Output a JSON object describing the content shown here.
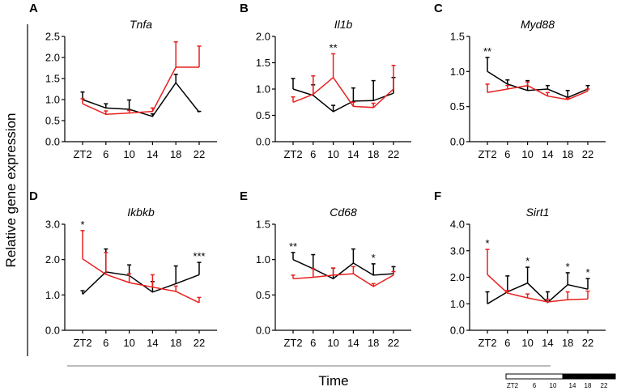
{
  "figure": {
    "ylabel": "Relative gene expression",
    "xlabel": "Time",
    "light_bar": {
      "labels": [
        "ZT2",
        "6",
        "10",
        "14",
        "18",
        "22"
      ]
    }
  },
  "colors": {
    "black_series": "#000000",
    "red_series": "#e8201e",
    "axis": "#000000"
  },
  "chart_data": [
    {
      "panel": "A",
      "title": "Tnfa",
      "type": "line",
      "x": [
        "ZT2",
        "6",
        "10",
        "14",
        "18",
        "22"
      ],
      "ylim": [
        0.0,
        2.5
      ],
      "yticks": [
        "0.0",
        "0.5",
        "1.0",
        "1.5",
        "2.0",
        "2.5"
      ],
      "series": [
        {
          "name": "black",
          "color": "#000000",
          "values": [
            1.0,
            0.8,
            0.77,
            0.6,
            1.4,
            0.7
          ],
          "err": [
            0.18,
            0.1,
            0.22,
            0.06,
            0.2,
            0.02
          ]
        },
        {
          "name": "red",
          "color": "#e8201e",
          "values": [
            0.9,
            0.65,
            0.68,
            0.72,
            1.77,
            1.77
          ],
          "err": [
            0.12,
            0.08,
            0.06,
            0.08,
            0.6,
            0.5
          ]
        }
      ],
      "annotations": []
    },
    {
      "panel": "B",
      "title": "Il1b",
      "type": "line",
      "x": [
        "ZT2",
        "6",
        "10",
        "14",
        "18",
        "22"
      ],
      "ylim": [
        0.0,
        2.0
      ],
      "yticks": [
        "0.0",
        "0.5",
        "1.0",
        "1.5",
        "2.0"
      ],
      "series": [
        {
          "name": "black",
          "color": "#000000",
          "values": [
            1.0,
            0.88,
            0.57,
            0.77,
            0.78,
            0.92
          ],
          "err": [
            0.2,
            0.2,
            0.12,
            0.25,
            0.38,
            0.3
          ]
        },
        {
          "name": "red",
          "color": "#e8201e",
          "values": [
            0.75,
            0.9,
            1.22,
            0.67,
            0.65,
            1.0
          ],
          "err": [
            0.1,
            0.35,
            0.45,
            0.08,
            0.08,
            0.45
          ]
        }
      ],
      "annotations": [
        {
          "x": "10",
          "text": "**"
        }
      ]
    },
    {
      "panel": "C",
      "title": "Myd88",
      "type": "line",
      "x": [
        "ZT2",
        "6",
        "10",
        "14",
        "18",
        "22"
      ],
      "ylim": [
        0.0,
        1.5
      ],
      "yticks": [
        "0.0",
        "0.5",
        "1.0",
        "1.5"
      ],
      "series": [
        {
          "name": "black",
          "color": "#000000",
          "values": [
            1.0,
            0.82,
            0.73,
            0.75,
            0.63,
            0.75
          ],
          "err": [
            0.2,
            0.06,
            0.14,
            0.05,
            0.1,
            0.05
          ]
        },
        {
          "name": "red",
          "color": "#e8201e",
          "values": [
            0.7,
            0.75,
            0.8,
            0.65,
            0.6,
            0.72
          ],
          "err": [
            0.12,
            0.05,
            0.05,
            0.05,
            0.02,
            0.03
          ]
        }
      ],
      "annotations": [
        {
          "x": "ZT2",
          "text": "**"
        }
      ]
    },
    {
      "panel": "D",
      "title": "Ikbkb",
      "type": "line",
      "x": [
        "ZT2",
        "6",
        "10",
        "14",
        "18",
        "22"
      ],
      "ylim": [
        0.0,
        3.0
      ],
      "yticks": [
        "0.0",
        "1.0",
        "2.0",
        "3.0"
      ],
      "series": [
        {
          "name": "black",
          "color": "#000000",
          "values": [
            1.02,
            1.65,
            1.55,
            1.08,
            1.32,
            1.57
          ],
          "err": [
            0.1,
            0.65,
            0.3,
            0.3,
            0.5,
            0.35
          ]
        },
        {
          "name": "red",
          "color": "#e8201e",
          "values": [
            2.02,
            1.58,
            1.35,
            1.22,
            1.1,
            0.78
          ],
          "err": [
            0.8,
            0.62,
            0.25,
            0.35,
            0.15,
            0.15
          ]
        }
      ],
      "annotations": [
        {
          "x": "ZT2",
          "text": "*"
        },
        {
          "x": "22",
          "text": "***"
        }
      ]
    },
    {
      "panel": "E",
      "title": "Cd68",
      "type": "line",
      "x": [
        "ZT2",
        "6",
        "10",
        "14",
        "18",
        "22"
      ],
      "ylim": [
        0.0,
        1.5
      ],
      "yticks": [
        "0.0",
        "0.5",
        "1.0",
        "1.5"
      ],
      "series": [
        {
          "name": "black",
          "color": "#000000",
          "values": [
            1.0,
            0.87,
            0.73,
            0.95,
            0.78,
            0.8
          ],
          "err": [
            0.1,
            0.2,
            0.15,
            0.2,
            0.16,
            0.1
          ]
        },
        {
          "name": "red",
          "color": "#e8201e",
          "values": [
            0.73,
            0.75,
            0.78,
            0.8,
            0.62,
            0.78
          ],
          "err": [
            0.05,
            0.12,
            0.1,
            0.1,
            0.04,
            0.05
          ]
        }
      ],
      "annotations": [
        {
          "x": "ZT2",
          "text": "**"
        },
        {
          "x": "18",
          "text": "*"
        }
      ]
    },
    {
      "panel": "F",
      "title": "Sirt1",
      "type": "line",
      "x": [
        "ZT2",
        "6",
        "10",
        "14",
        "18",
        "22"
      ],
      "ylim": [
        0.0,
        4.0
      ],
      "yticks": [
        "0.0",
        "1.0",
        "2.0",
        "3.0",
        "4.0"
      ],
      "series": [
        {
          "name": "black",
          "color": "#000000",
          "values": [
            1.0,
            1.45,
            1.78,
            1.05,
            1.72,
            1.55
          ],
          "err": [
            0.45,
            0.6,
            0.6,
            0.4,
            0.45,
            0.4
          ]
        },
        {
          "name": "red",
          "color": "#e8201e",
          "values": [
            2.1,
            1.4,
            1.22,
            1.07,
            1.15,
            1.18
          ],
          "err": [
            0.95,
            0.1,
            0.15,
            0.1,
            0.3,
            0.3
          ]
        }
      ],
      "annotations": [
        {
          "x": "ZT2",
          "text": "*"
        },
        {
          "x": "10",
          "text": "*"
        },
        {
          "x": "18",
          "text": "*"
        },
        {
          "x": "22",
          "text": "*"
        }
      ]
    }
  ]
}
